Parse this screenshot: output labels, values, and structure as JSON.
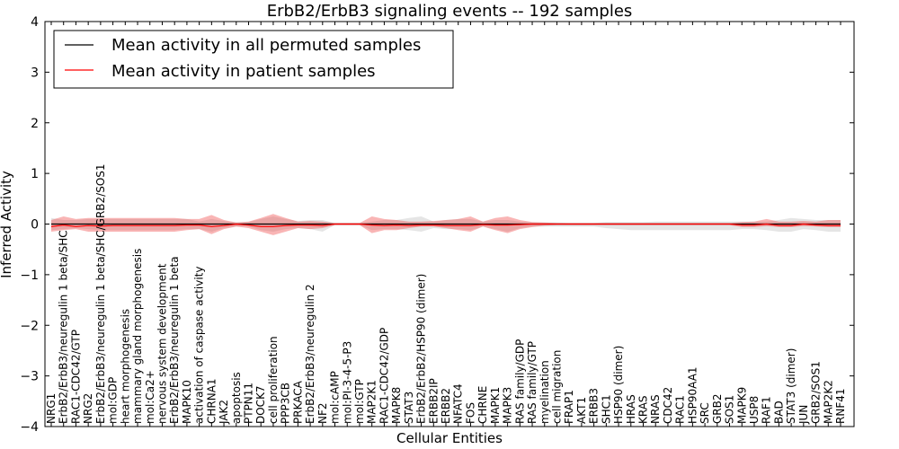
{
  "chart_data": {
    "type": "line",
    "title": "ErbB2/ErbB3 signaling events -- 192 samples",
    "xlabel": "Cellular Entities",
    "ylabel": "Inferred Activity",
    "ylim": [
      -4,
      4
    ],
    "yticks": [
      -4,
      -3,
      -2,
      -1,
      0,
      1,
      2,
      3,
      4
    ],
    "legend_position": "top-left",
    "grid": false,
    "categories": [
      "NRG1",
      "ErbB2/ErbB3/neuregulin 1 beta/SHC",
      "RAC1-CDC42/GTP",
      "NRG2",
      "ErbB2/ErbB3/neuregulin 1 beta/SHC/GRB2/SOS1",
      "mol:GDP",
      "heart morphogenesis",
      "mammary gland morphogenesis",
      "mol:Ca2+",
      "nervous system development",
      "ErbB2/ErbB3/neuregulin 1 beta",
      "MAPK10",
      "activation of caspase activity",
      "CHRNA1",
      "JAK2",
      "apoptosis",
      "PTPN11",
      "DOCK7",
      "cell proliferation",
      "PPP3CB",
      "PRKACA",
      "ErbB2/ErbB3/neuregulin 2",
      "NF2",
      "mol:cAMP",
      "mol:PI-3-4-5-P3",
      "mol:GTP",
      "MAP2K1",
      "RAC1-CDC42/GDP",
      "MAPK8",
      "STAT3",
      "ErbB2/ErbB2/HSP90 (dimer)",
      "ERBB2IP",
      "ERBB2",
      "NFATC4",
      "FOS",
      "CHRNE",
      "MAPK1",
      "MAPK3",
      "RAS family/GDP",
      "RAS family/GTP",
      "myelination",
      "cell migration",
      "FRAP1",
      "AKT1",
      "ERBB3",
      "SHC1",
      "HSP90 (dimer)",
      "HRAS",
      "KRAS",
      "NRAS",
      "CDC42",
      "RAC1",
      "HSP90AA1",
      "SRC",
      "GRB2",
      "SOS1",
      "MAPK9",
      "USP8",
      "RAF1",
      "BAD",
      "STAT3 (dimer)",
      "JUN",
      "GRB2/SOS1",
      "MAP2K2",
      "RNF41"
    ],
    "series": [
      {
        "name": "Mean activity in all permuted samples",
        "color": "#000000",
        "values": [
          0,
          0,
          0,
          0,
          0,
          0,
          0,
          0,
          0,
          0,
          0,
          0,
          0,
          0,
          0,
          0,
          0,
          0,
          0,
          0,
          0,
          0,
          0,
          0,
          0,
          0,
          0,
          0,
          0,
          0,
          0,
          0,
          0,
          0,
          0,
          0,
          0,
          0,
          0,
          0,
          0,
          0,
          0,
          0,
          0,
          0,
          0,
          0,
          0,
          0,
          0,
          0,
          0,
          0,
          0,
          0,
          0,
          0,
          0,
          0,
          0,
          0,
          0,
          0,
          0
        ],
        "band_lower": [
          -0.12,
          -0.1,
          -0.08,
          -0.1,
          -0.12,
          -0.12,
          -0.12,
          -0.12,
          -0.12,
          -0.12,
          -0.12,
          -0.1,
          -0.1,
          -0.15,
          -0.08,
          -0.05,
          -0.05,
          -0.12,
          -0.15,
          -0.1,
          -0.08,
          -0.1,
          -0.15,
          -0.02,
          -0.02,
          -0.02,
          -0.12,
          -0.1,
          -0.1,
          -0.12,
          -0.15,
          -0.08,
          -0.1,
          -0.1,
          -0.12,
          -0.05,
          -0.1,
          -0.15,
          -0.08,
          -0.05,
          -0.05,
          -0.05,
          -0.05,
          -0.05,
          -0.05,
          -0.08,
          -0.1,
          -0.12,
          -0.12,
          -0.12,
          -0.12,
          -0.12,
          -0.12,
          -0.12,
          -0.12,
          -0.12,
          -0.1,
          -0.1,
          -0.12,
          -0.15,
          -0.15,
          -0.1,
          -0.12,
          -0.15,
          -0.15
        ],
        "band_upper": [
          0.12,
          0.08,
          0.08,
          0.1,
          0.1,
          0.1,
          0.1,
          0.1,
          0.1,
          0.1,
          0.1,
          0.1,
          0.05,
          0.1,
          0.06,
          0.03,
          0.04,
          0.1,
          0.15,
          0.1,
          0.06,
          0.08,
          0.08,
          0.02,
          0.02,
          0.02,
          0.05,
          0.08,
          0.08,
          0.12,
          0.15,
          0.05,
          0.08,
          0.1,
          0.1,
          0.05,
          0.08,
          0.08,
          0.05,
          0.03,
          0.03,
          0.03,
          0.02,
          0.02,
          0.02,
          0.04,
          0.04,
          0.04,
          0.04,
          0.05,
          0.05,
          0.05,
          0.05,
          0.05,
          0.05,
          0.05,
          0.05,
          0.05,
          0.05,
          0.08,
          0.12,
          0.1,
          0.08,
          0.08,
          0.08
        ]
      },
      {
        "name": "Mean activity in patient samples",
        "color": "#ff0000",
        "values": [
          -0.05,
          -0.02,
          -0.05,
          -0.03,
          -0.04,
          -0.03,
          -0.03,
          -0.03,
          -0.03,
          -0.03,
          -0.03,
          -0.02,
          -0.02,
          -0.05,
          -0.03,
          0.0,
          -0.02,
          -0.05,
          -0.05,
          -0.03,
          -0.02,
          -0.02,
          -0.03,
          0.0,
          0.0,
          0.0,
          -0.02,
          -0.03,
          -0.02,
          -0.03,
          -0.02,
          -0.02,
          -0.03,
          -0.03,
          -0.03,
          -0.01,
          -0.02,
          -0.02,
          -0.01,
          0.0,
          0.0,
          0.0,
          0.0,
          0.0,
          0.0,
          0.0,
          0.0,
          0.0,
          0.0,
          0.0,
          0.0,
          0.0,
          0.0,
          0.0,
          0.0,
          0.0,
          -0.02,
          -0.02,
          0.0,
          -0.03,
          -0.03,
          0.0,
          -0.02,
          -0.03,
          -0.03
        ],
        "band_lower": [
          -0.15,
          -0.12,
          -0.1,
          -0.15,
          -0.15,
          -0.15,
          -0.15,
          -0.15,
          -0.15,
          -0.15,
          -0.15,
          -0.12,
          -0.1,
          -0.2,
          -0.1,
          -0.05,
          -0.08,
          -0.15,
          -0.22,
          -0.15,
          -0.08,
          -0.1,
          -0.08,
          -0.02,
          -0.02,
          -0.02,
          -0.18,
          -0.12,
          -0.12,
          -0.08,
          -0.05,
          -0.05,
          -0.08,
          -0.12,
          -0.15,
          -0.05,
          -0.12,
          -0.18,
          -0.1,
          -0.06,
          -0.03,
          -0.02,
          -0.02,
          -0.02,
          -0.02,
          -0.02,
          -0.02,
          -0.02,
          -0.02,
          -0.02,
          -0.02,
          -0.02,
          -0.02,
          -0.02,
          -0.02,
          -0.02,
          -0.06,
          -0.06,
          -0.04,
          -0.06,
          -0.06,
          -0.04,
          -0.05,
          -0.06,
          -0.06
        ],
        "band_upper": [
          0.08,
          0.15,
          0.1,
          0.12,
          0.12,
          0.12,
          0.12,
          0.12,
          0.12,
          0.12,
          0.12,
          0.1,
          0.1,
          0.18,
          0.08,
          0.03,
          0.05,
          0.12,
          0.2,
          0.12,
          0.05,
          0.06,
          0.05,
          0.02,
          0.02,
          0.02,
          0.15,
          0.1,
          0.08,
          0.05,
          0.05,
          0.06,
          0.08,
          0.1,
          0.15,
          0.05,
          0.12,
          0.15,
          0.08,
          0.04,
          0.03,
          0.02,
          0.02,
          0.02,
          0.02,
          0.02,
          0.02,
          0.02,
          0.02,
          0.02,
          0.02,
          0.02,
          0.02,
          0.02,
          0.02,
          0.02,
          0.04,
          0.05,
          0.1,
          0.05,
          0.05,
          0.06,
          0.05,
          0.08,
          0.08
        ]
      }
    ]
  }
}
